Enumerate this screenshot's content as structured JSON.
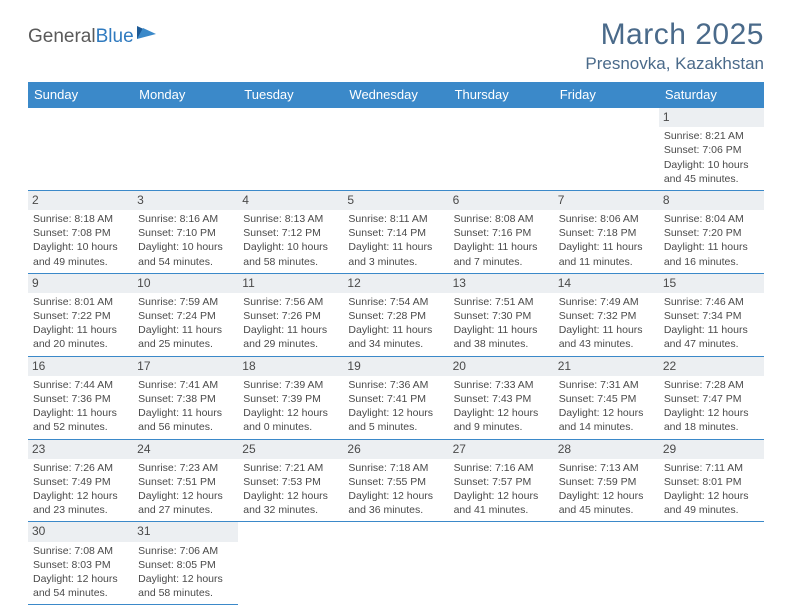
{
  "logo": {
    "text1": "General",
    "text2": "Blue"
  },
  "title": "March 2025",
  "location": "Presnovka, Kazakhstan",
  "colors": {
    "header_bg": "#3b89c9",
    "header_text": "#ffffff",
    "grid_line": "#3b89c9",
    "daynum_bg": "#eceff2",
    "text": "#4a4a4a",
    "title": "#4a6a8a"
  },
  "weekdays": [
    "Sunday",
    "Monday",
    "Tuesday",
    "Wednesday",
    "Thursday",
    "Friday",
    "Saturday"
  ],
  "weeks": [
    [
      {
        "empty": true
      },
      {
        "empty": true
      },
      {
        "empty": true
      },
      {
        "empty": true
      },
      {
        "empty": true
      },
      {
        "empty": true
      },
      {
        "day": "1",
        "sunrise": "Sunrise: 8:21 AM",
        "sunset": "Sunset: 7:06 PM",
        "daylight1": "Daylight: 10 hours",
        "daylight2": "and 45 minutes."
      }
    ],
    [
      {
        "day": "2",
        "sunrise": "Sunrise: 8:18 AM",
        "sunset": "Sunset: 7:08 PM",
        "daylight1": "Daylight: 10 hours",
        "daylight2": "and 49 minutes."
      },
      {
        "day": "3",
        "sunrise": "Sunrise: 8:16 AM",
        "sunset": "Sunset: 7:10 PM",
        "daylight1": "Daylight: 10 hours",
        "daylight2": "and 54 minutes."
      },
      {
        "day": "4",
        "sunrise": "Sunrise: 8:13 AM",
        "sunset": "Sunset: 7:12 PM",
        "daylight1": "Daylight: 10 hours",
        "daylight2": "and 58 minutes."
      },
      {
        "day": "5",
        "sunrise": "Sunrise: 8:11 AM",
        "sunset": "Sunset: 7:14 PM",
        "daylight1": "Daylight: 11 hours",
        "daylight2": "and 3 minutes."
      },
      {
        "day": "6",
        "sunrise": "Sunrise: 8:08 AM",
        "sunset": "Sunset: 7:16 PM",
        "daylight1": "Daylight: 11 hours",
        "daylight2": "and 7 minutes."
      },
      {
        "day": "7",
        "sunrise": "Sunrise: 8:06 AM",
        "sunset": "Sunset: 7:18 PM",
        "daylight1": "Daylight: 11 hours",
        "daylight2": "and 11 minutes."
      },
      {
        "day": "8",
        "sunrise": "Sunrise: 8:04 AM",
        "sunset": "Sunset: 7:20 PM",
        "daylight1": "Daylight: 11 hours",
        "daylight2": "and 16 minutes."
      }
    ],
    [
      {
        "day": "9",
        "sunrise": "Sunrise: 8:01 AM",
        "sunset": "Sunset: 7:22 PM",
        "daylight1": "Daylight: 11 hours",
        "daylight2": "and 20 minutes."
      },
      {
        "day": "10",
        "sunrise": "Sunrise: 7:59 AM",
        "sunset": "Sunset: 7:24 PM",
        "daylight1": "Daylight: 11 hours",
        "daylight2": "and 25 minutes."
      },
      {
        "day": "11",
        "sunrise": "Sunrise: 7:56 AM",
        "sunset": "Sunset: 7:26 PM",
        "daylight1": "Daylight: 11 hours",
        "daylight2": "and 29 minutes."
      },
      {
        "day": "12",
        "sunrise": "Sunrise: 7:54 AM",
        "sunset": "Sunset: 7:28 PM",
        "daylight1": "Daylight: 11 hours",
        "daylight2": "and 34 minutes."
      },
      {
        "day": "13",
        "sunrise": "Sunrise: 7:51 AM",
        "sunset": "Sunset: 7:30 PM",
        "daylight1": "Daylight: 11 hours",
        "daylight2": "and 38 minutes."
      },
      {
        "day": "14",
        "sunrise": "Sunrise: 7:49 AM",
        "sunset": "Sunset: 7:32 PM",
        "daylight1": "Daylight: 11 hours",
        "daylight2": "and 43 minutes."
      },
      {
        "day": "15",
        "sunrise": "Sunrise: 7:46 AM",
        "sunset": "Sunset: 7:34 PM",
        "daylight1": "Daylight: 11 hours",
        "daylight2": "and 47 minutes."
      }
    ],
    [
      {
        "day": "16",
        "sunrise": "Sunrise: 7:44 AM",
        "sunset": "Sunset: 7:36 PM",
        "daylight1": "Daylight: 11 hours",
        "daylight2": "and 52 minutes."
      },
      {
        "day": "17",
        "sunrise": "Sunrise: 7:41 AM",
        "sunset": "Sunset: 7:38 PM",
        "daylight1": "Daylight: 11 hours",
        "daylight2": "and 56 minutes."
      },
      {
        "day": "18",
        "sunrise": "Sunrise: 7:39 AM",
        "sunset": "Sunset: 7:39 PM",
        "daylight1": "Daylight: 12 hours",
        "daylight2": "and 0 minutes."
      },
      {
        "day": "19",
        "sunrise": "Sunrise: 7:36 AM",
        "sunset": "Sunset: 7:41 PM",
        "daylight1": "Daylight: 12 hours",
        "daylight2": "and 5 minutes."
      },
      {
        "day": "20",
        "sunrise": "Sunrise: 7:33 AM",
        "sunset": "Sunset: 7:43 PM",
        "daylight1": "Daylight: 12 hours",
        "daylight2": "and 9 minutes."
      },
      {
        "day": "21",
        "sunrise": "Sunrise: 7:31 AM",
        "sunset": "Sunset: 7:45 PM",
        "daylight1": "Daylight: 12 hours",
        "daylight2": "and 14 minutes."
      },
      {
        "day": "22",
        "sunrise": "Sunrise: 7:28 AM",
        "sunset": "Sunset: 7:47 PM",
        "daylight1": "Daylight: 12 hours",
        "daylight2": "and 18 minutes."
      }
    ],
    [
      {
        "day": "23",
        "sunrise": "Sunrise: 7:26 AM",
        "sunset": "Sunset: 7:49 PM",
        "daylight1": "Daylight: 12 hours",
        "daylight2": "and 23 minutes."
      },
      {
        "day": "24",
        "sunrise": "Sunrise: 7:23 AM",
        "sunset": "Sunset: 7:51 PM",
        "daylight1": "Daylight: 12 hours",
        "daylight2": "and 27 minutes."
      },
      {
        "day": "25",
        "sunrise": "Sunrise: 7:21 AM",
        "sunset": "Sunset: 7:53 PM",
        "daylight1": "Daylight: 12 hours",
        "daylight2": "and 32 minutes."
      },
      {
        "day": "26",
        "sunrise": "Sunrise: 7:18 AM",
        "sunset": "Sunset: 7:55 PM",
        "daylight1": "Daylight: 12 hours",
        "daylight2": "and 36 minutes."
      },
      {
        "day": "27",
        "sunrise": "Sunrise: 7:16 AM",
        "sunset": "Sunset: 7:57 PM",
        "daylight1": "Daylight: 12 hours",
        "daylight2": "and 41 minutes."
      },
      {
        "day": "28",
        "sunrise": "Sunrise: 7:13 AM",
        "sunset": "Sunset: 7:59 PM",
        "daylight1": "Daylight: 12 hours",
        "daylight2": "and 45 minutes."
      },
      {
        "day": "29",
        "sunrise": "Sunrise: 7:11 AM",
        "sunset": "Sunset: 8:01 PM",
        "daylight1": "Daylight: 12 hours",
        "daylight2": "and 49 minutes."
      }
    ],
    [
      {
        "day": "30",
        "sunrise": "Sunrise: 7:08 AM",
        "sunset": "Sunset: 8:03 PM",
        "daylight1": "Daylight: 12 hours",
        "daylight2": "and 54 minutes."
      },
      {
        "day": "31",
        "sunrise": "Sunrise: 7:06 AM",
        "sunset": "Sunset: 8:05 PM",
        "daylight1": "Daylight: 12 hours",
        "daylight2": "and 58 minutes."
      },
      {
        "empty": true
      },
      {
        "empty": true
      },
      {
        "empty": true
      },
      {
        "empty": true
      },
      {
        "empty": true
      }
    ]
  ]
}
